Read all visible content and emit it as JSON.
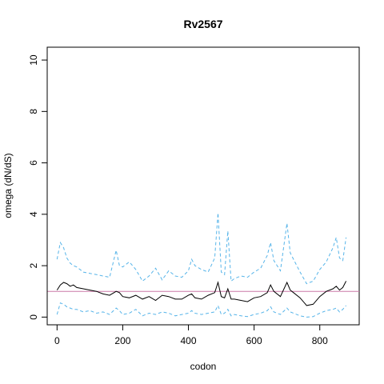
{
  "chart_data": {
    "type": "line",
    "title": "Rv2567",
    "xlabel": "codon",
    "ylabel": "omega (dN/dS)",
    "xlim": [
      -30,
      920
    ],
    "ylim": [
      -0.3,
      10.5
    ],
    "xticks": [
      0,
      200,
      400,
      600,
      800
    ],
    "yticks": [
      0,
      2,
      4,
      6,
      8,
      10
    ],
    "reference_line": {
      "y": 1,
      "color": "#cc79a7"
    },
    "colors": {
      "mean": "#000000",
      "ci": "#56b4e9",
      "reference": "#cc79a7"
    },
    "x": [
      0,
      10,
      20,
      30,
      40,
      50,
      60,
      80,
      100,
      120,
      140,
      160,
      180,
      190,
      200,
      220,
      240,
      260,
      280,
      300,
      320,
      340,
      360,
      380,
      400,
      410,
      420,
      440,
      460,
      480,
      490,
      500,
      510,
      520,
      530,
      540,
      560,
      580,
      600,
      620,
      640,
      650,
      660,
      680,
      700,
      710,
      720,
      740,
      760,
      780,
      800,
      820,
      840,
      850,
      860,
      870,
      880
    ],
    "series": [
      {
        "line": "solid",
        "values": [
          1.05,
          1.25,
          1.35,
          1.3,
          1.2,
          1.25,
          1.15,
          1.1,
          1.05,
          1.0,
          0.9,
          0.85,
          1.0,
          0.95,
          0.8,
          0.75,
          0.85,
          0.7,
          0.8,
          0.65,
          0.85,
          0.8,
          0.7,
          0.7,
          0.85,
          0.9,
          0.75,
          0.7,
          0.85,
          0.95,
          1.35,
          0.8,
          0.75,
          1.1,
          0.7,
          0.7,
          0.65,
          0.6,
          0.75,
          0.8,
          0.95,
          1.25,
          1.0,
          0.8,
          1.35,
          1.05,
          0.95,
          0.75,
          0.45,
          0.5,
          0.8,
          1.0,
          1.1,
          1.2,
          1.05,
          1.15,
          1.4
        ]
      },
      {
        "line": "dashed",
        "values": [
          2.25,
          2.9,
          2.7,
          2.3,
          2.1,
          2.0,
          1.95,
          1.75,
          1.7,
          1.65,
          1.6,
          1.55,
          2.6,
          2.0,
          1.95,
          2.15,
          1.85,
          1.4,
          1.6,
          1.9,
          1.45,
          1.8,
          1.6,
          1.55,
          1.8,
          2.25,
          2.0,
          1.85,
          1.75,
          2.3,
          4.05,
          1.75,
          1.65,
          3.35,
          1.4,
          1.5,
          1.6,
          1.55,
          1.75,
          1.9,
          2.4,
          2.9,
          2.2,
          1.8,
          3.65,
          2.5,
          2.25,
          1.75,
          1.3,
          1.4,
          1.85,
          2.15,
          2.7,
          3.1,
          2.3,
          2.2,
          3.1
        ]
      },
      {
        "line": "dashed",
        "values": [
          0.1,
          0.55,
          0.5,
          0.4,
          0.35,
          0.3,
          0.3,
          0.2,
          0.25,
          0.15,
          0.2,
          0.1,
          0.35,
          0.25,
          0.1,
          0.15,
          0.3,
          0.05,
          0.15,
          0.1,
          0.2,
          0.15,
          0.05,
          0.1,
          0.15,
          0.25,
          0.15,
          0.1,
          0.15,
          0.2,
          0.45,
          0.1,
          0.15,
          0.3,
          0.05,
          0.1,
          0.05,
          0.02,
          0.1,
          0.15,
          0.25,
          0.4,
          0.2,
          0.1,
          0.35,
          0.2,
          0.15,
          0.05,
          0.0,
          0.02,
          0.15,
          0.25,
          0.3,
          0.35,
          0.2,
          0.3,
          0.45
        ]
      }
    ]
  }
}
